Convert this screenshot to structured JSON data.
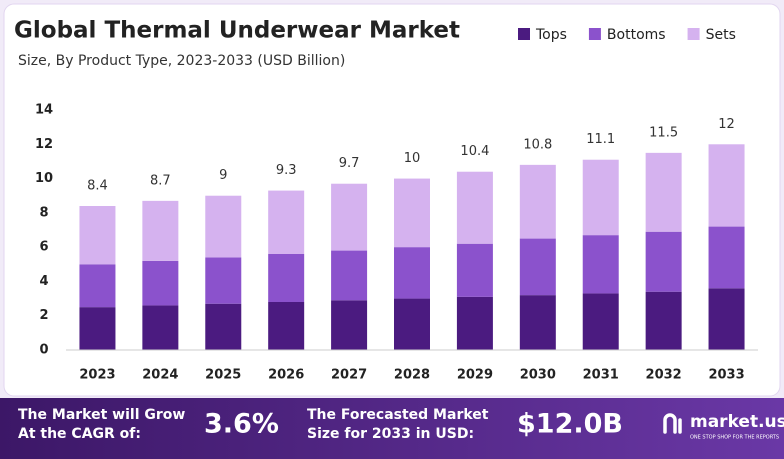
{
  "chart_data": {
    "type": "stacked-bar",
    "title": "Global Thermal Underwear Market",
    "subtitle": "Size, By Product Type, 2023-2033 (USD Billion)",
    "categories": [
      "2023",
      "2024",
      "2025",
      "2026",
      "2027",
      "2028",
      "2029",
      "2030",
      "2031",
      "2032",
      "2033"
    ],
    "series": [
      {
        "name": "Tops",
        "color": "#4b1b80",
        "values": [
          2.5,
          2.6,
          2.7,
          2.8,
          2.9,
          3.0,
          3.1,
          3.2,
          3.3,
          3.4,
          3.6
        ]
      },
      {
        "name": "Bottoms",
        "color": "#8b52cc",
        "values": [
          2.5,
          2.6,
          2.7,
          2.8,
          2.9,
          3.0,
          3.1,
          3.3,
          3.4,
          3.5,
          3.6
        ]
      },
      {
        "name": "Sets",
        "color": "#d5b2ef",
        "values": [
          3.4,
          3.5,
          3.6,
          3.7,
          3.9,
          4.0,
          4.2,
          4.3,
          4.4,
          4.6,
          4.8
        ]
      }
    ],
    "totals": [
      8.4,
      8.7,
      9.0,
      9.3,
      9.7,
      10.0,
      10.4,
      10.8,
      11.1,
      11.5,
      12.0
    ],
    "ylim": [
      0,
      14
    ],
    "yticks": [
      0,
      2,
      4,
      6,
      8,
      10,
      12,
      14
    ],
    "grid": false,
    "legend": "top-right"
  },
  "banner": {
    "cagr_text_1": "The Market will Grow",
    "cagr_text_2": "At the CAGR of:",
    "cagr": "3.6%",
    "forecast_text_1": "The Forecasted Market",
    "forecast_text_2": "Size for 2033 in USD:",
    "forecast": "$12.0B",
    "brand": "market.us",
    "tagline": "ONE STOP SHOP FOR THE REPORTS"
  }
}
